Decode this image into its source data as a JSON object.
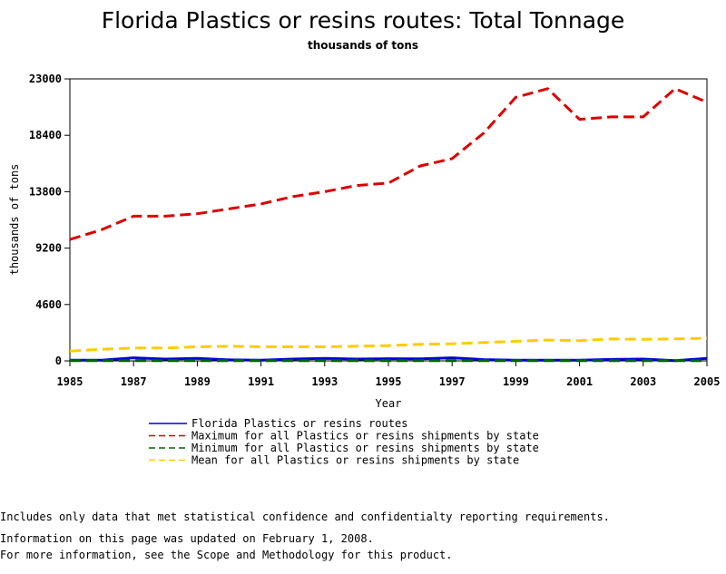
{
  "chart_data": {
    "type": "line",
    "title": "Florida Plastics or resins routes: Total Tonnage",
    "subtitle": "thousands of tons",
    "xlabel": "Year",
    "ylabel": "thousands of tons",
    "xlim": [
      1985,
      2005
    ],
    "ylim": [
      0,
      23000
    ],
    "x_ticks": [
      1985,
      1987,
      1989,
      1991,
      1993,
      1995,
      1997,
      1999,
      2001,
      2003,
      2005
    ],
    "y_ticks": [
      0,
      4600,
      9200,
      13800,
      18400,
      23000
    ],
    "grid": false,
    "legend_position": "bottom",
    "x": [
      1985,
      1986,
      1987,
      1988,
      1989,
      1990,
      1991,
      1992,
      1993,
      1994,
      1995,
      1996,
      1997,
      1998,
      1999,
      2000,
      2001,
      2002,
      2003,
      2004,
      2005
    ],
    "series": [
      {
        "name": "Florida Plastics or resins routes",
        "color": "#0000cc",
        "dash": "solid",
        "values": [
          50,
          60,
          250,
          150,
          200,
          80,
          60,
          150,
          200,
          150,
          180,
          170,
          250,
          100,
          50,
          50,
          50,
          120,
          150,
          20,
          200
        ]
      },
      {
        "name": "Maximum for all Plastics or resins shipments by state",
        "color": "#dd0000",
        "dash": "dashed",
        "values": [
          9900,
          10700,
          11800,
          11800,
          12000,
          12400,
          12800,
          13400,
          13800,
          14300,
          14500,
          15900,
          16500,
          18600,
          21500,
          22200,
          19700,
          19900,
          19900,
          22200,
          21100
        ]
      },
      {
        "name": "Minimum for all Plastics or resins shipments by state",
        "color": "#006600",
        "dash": "dashed",
        "values": [
          20,
          20,
          20,
          20,
          20,
          20,
          20,
          20,
          20,
          20,
          20,
          20,
          20,
          20,
          20,
          20,
          20,
          20,
          20,
          20,
          20
        ]
      },
      {
        "name": "Mean for all Plastics or resins shipments by state",
        "color": "#ffcc00",
        "dash": "dashed",
        "values": [
          800,
          950,
          1050,
          1050,
          1150,
          1200,
          1150,
          1150,
          1150,
          1200,
          1250,
          1350,
          1400,
          1500,
          1600,
          1700,
          1650,
          1800,
          1750,
          1800,
          1850
        ]
      }
    ]
  },
  "notes": [
    "Includes only data that met statistical confidence and confidentialty reporting requirements.",
    "For more information, see the Scope and Methodology for this product."
  ],
  "updated": "Information on this page was updated on February 1, 2008."
}
